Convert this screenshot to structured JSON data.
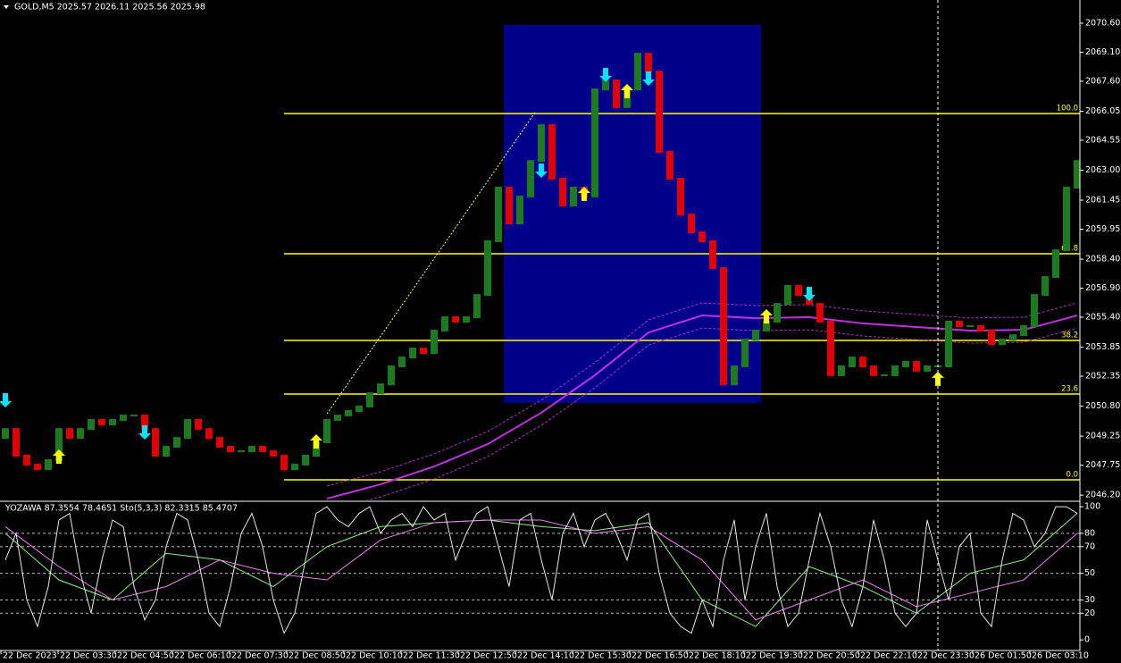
{
  "chart_data": {
    "type": "ohlc",
    "title": "GOLD,M5  2025.57 2026.11 2025.56 2025.98",
    "up_color": "#1e7a1e",
    "down_color": "#e00000",
    "ylim": [
      2045.93,
      2071.8
    ],
    "yticks": [
      {
        "value": 2070.6,
        "label": "2070.60"
      },
      {
        "value": 2069.1,
        "label": "2069.10"
      },
      {
        "value": 2067.6,
        "label": "2067.60"
      },
      {
        "value": 2066.05,
        "label": "2066.05"
      },
      {
        "value": 2064.55,
        "label": "2064.55"
      },
      {
        "value": 2063,
        "label": "2063.00"
      },
      {
        "value": 2061.45,
        "label": "2061.45"
      },
      {
        "value": 2059.95,
        "label": "2059.95"
      },
      {
        "value": 2058.4,
        "label": "2058.40"
      },
      {
        "value": 2056.9,
        "label": "2056.90"
      },
      {
        "value": 2055.4,
        "label": "2055.40"
      },
      {
        "value": 2053.85,
        "label": "2053.85"
      },
      {
        "value": 2052.35,
        "label": "2052.35"
      },
      {
        "value": 2050.8,
        "label": "2050.80"
      },
      {
        "value": 2049.25,
        "label": "2049.25"
      },
      {
        "value": 2047.75,
        "label": "2047.75"
      },
      {
        "value": 2046.2,
        "label": "2046.20"
      }
    ],
    "xlabels": [
      "22 Dec 2023",
      "22 Dec 03:30",
      "22 Dec 04:50",
      "22 Dec 06:10",
      "22 Dec 07:30",
      "22 Dec 08:50",
      "22 Dec 10:10",
      "22 Dec 11:30",
      "22 Dec 12:50",
      "22 Dec 14:10",
      "22 Dec 15:30",
      "22 Dec 16:50",
      "22 Dec 18:10",
      "22 Dec 19:30",
      "22 Dec 20:50",
      "22 Dec 22:10",
      "22 Dec 23:30",
      "26 Dec 01:50",
      "26 Dec 03:10"
    ],
    "open": [
      2049.16,
      2049.62,
      2048.24,
      2047.78,
      2047.54,
      2048.01,
      2049.62,
      2049.16,
      2049.62,
      2050.09,
      2049.85,
      2050.09,
      2050.32,
      2050.32,
      2049.62,
      2048.24,
      2048.7,
      2049.16,
      2050.09,
      2049.62,
      2049.16,
      2048.7,
      2048.47,
      2048.47,
      2048.7,
      2048.47,
      2048.24,
      2047.54,
      2047.78,
      2048.24,
      2048.93,
      2050.09,
      2050.32,
      2050.55,
      2050.78,
      2051.47,
      2051.93,
      2052.86,
      2053.32,
      2053.78,
      2053.55,
      2054.71,
      2055.4,
      2055.17,
      2055.4,
      2056.55,
      2059.33,
      2062.1,
      2060.25,
      2061.64,
      2063.48,
      2065.33,
      2062.56,
      2061.17,
      2062.1,
      2061.64,
      2067.18,
      2067.64,
      2066.26,
      2067.18,
      2069.03,
      2068.1,
      2063.95,
      2062.56,
      2060.71,
      2059.79,
      2059.33,
      2057.94,
      2051.93,
      2052.86,
      2054.24,
      2054.71,
      2055.17,
      2056.09,
      2057.02,
      2056.55,
      2056.09,
      2055.17,
      2052.4,
      2052.86,
      2053.32,
      2052.86,
      2052.4,
      2052.4,
      2052.86,
      2053.09,
      2052.63,
      2052.86,
      2052.86,
      2055.17,
      2054.94,
      2054.94,
      2054.71,
      2054.01,
      2054.24,
      2054.47,
      2054.94,
      2056.55,
      2057.48,
      2058.86,
      2062.1
    ],
    "close": [
      2049.62,
      2048.24,
      2047.78,
      2047.54,
      2048.01,
      2049.62,
      2049.16,
      2049.62,
      2050.09,
      2049.85,
      2050.09,
      2050.32,
      2050.32,
      2049.62,
      2048.24,
      2048.7,
      2049.16,
      2050.09,
      2049.62,
      2049.16,
      2048.7,
      2048.47,
      2048.47,
      2048.7,
      2048.47,
      2048.24,
      2047.54,
      2047.78,
      2048.24,
      2048.93,
      2050.09,
      2050.32,
      2050.55,
      2050.78,
      2051.47,
      2051.93,
      2052.86,
      2053.32,
      2053.78,
      2053.55,
      2054.71,
      2055.4,
      2055.17,
      2055.4,
      2056.55,
      2059.33,
      2062.1,
      2060.25,
      2061.64,
      2063.48,
      2065.33,
      2062.56,
      2061.17,
      2062.1,
      2061.64,
      2067.18,
      2067.64,
      2066.26,
      2067.18,
      2069.03,
      2068.1,
      2063.95,
      2062.56,
      2060.71,
      2059.79,
      2059.33,
      2057.94,
      2051.93,
      2052.86,
      2054.24,
      2054.71,
      2055.17,
      2056.09,
      2057.02,
      2056.55,
      2056.09,
      2055.17,
      2052.4,
      2052.86,
      2053.32,
      2052.86,
      2052.4,
      2052.4,
      2052.86,
      2053.09,
      2052.63,
      2052.86,
      2052.86,
      2055.17,
      2054.94,
      2054.94,
      2054.71,
      2054.01,
      2054.24,
      2054.47,
      2054.94,
      2056.55,
      2057.48,
      2058.86,
      2062.1,
      2063.48
    ],
    "overlays": [
      {
        "color": "#c030e0",
        "dashed": false,
        "x": [
          30,
          35,
          40,
          45,
          50,
          55,
          60,
          65,
          70,
          75,
          80,
          85,
          90,
          95,
          100
        ],
        "values": [
          2046.02,
          2046.76,
          2047.68,
          2048.84,
          2050.46,
          2052.4,
          2054.61,
          2055.49,
          2055.35,
          2055.4,
          2055.08,
          2054.89,
          2054.71,
          2054.75,
          2055.49
        ]
      },
      {
        "color": "#b030c8",
        "dashed": true,
        "x": [
          30,
          35,
          40,
          45,
          50,
          55,
          60,
          65,
          70,
          75,
          80,
          85,
          90,
          95,
          100
        ],
        "values": [
          2046.67,
          2047.41,
          2048.33,
          2049.49,
          2051.11,
          2053.05,
          2055.26,
          2056.14,
          2056.0,
          2056.05,
          2055.73,
          2055.54,
          2055.36,
          2055.4,
          2056.14
        ]
      },
      {
        "color": "#b030c8",
        "dashed": true,
        "x": [
          30,
          35,
          40,
          45,
          50,
          55,
          60,
          65,
          70,
          75,
          80,
          85,
          90,
          95,
          100
        ],
        "values": [
          2045.37,
          2046.11,
          2047.03,
          2048.19,
          2049.81,
          2051.75,
          2053.96,
          2054.84,
          2054.7,
          2054.75,
          2054.43,
          2054.24,
          2054.06,
          2054.1,
          2054.84
        ]
      }
    ],
    "buy_arrows": {
      "color": "#ffff00",
      "x": [
        5,
        29,
        54,
        58,
        71,
        87
      ],
      "values": [
        2048.15,
        2048.93,
        2061.73,
        2067.05,
        2055.4,
        2052.17
      ]
    },
    "sell_arrows": {
      "color": "#00e5ff",
      "x": [
        0,
        13,
        50,
        56,
        60,
        75
      ],
      "values": [
        2051.15,
        2049.49,
        2063.02,
        2067.97,
        2067.78,
        2056.65
      ]
    },
    "box": {
      "color": "#00008b",
      "x": [
        46.5,
        70.5
      ],
      "values": [
        2050.97,
        2070.51
      ]
    },
    "fib": {
      "color": "#ffff00",
      "start": 26,
      "levels": [
        {
          "value": 2065.93,
          "label": "100.0"
        },
        {
          "value": 2058.68,
          "label": "61.8"
        },
        {
          "value": 2054.2,
          "label": "38.2"
        },
        {
          "value": 2051.43,
          "label": "23.6"
        },
        {
          "value": 2046.99,
          "label": "0.0"
        }
      ]
    },
    "trend_line": {
      "x": [
        30,
        49.5
      ],
      "values": [
        2050.4,
        2066.05
      ]
    },
    "vline_x": 87,
    "oscillator": {
      "title": "YOZAWA 87.3554 78.4651  Sto(5,3,3) 82.3315 85.4707",
      "ylim": [
        -8,
        103.4
      ],
      "yticks": [
        100,
        80,
        70,
        50,
        30,
        20,
        0
      ],
      "levels": [
        80,
        70,
        50,
        30,
        20
      ],
      "fast": {
        "color": "#e8e8e8",
        "values": [
          60,
          80,
          30,
          10,
          40,
          90,
          95,
          50,
          20,
          60,
          90,
          85,
          40,
          15,
          30,
          70,
          95,
          90,
          60,
          20,
          10,
          40,
          80,
          95,
          70,
          30,
          5,
          20,
          60,
          95,
          100,
          90,
          85,
          95,
          100,
          80,
          90,
          95,
          85,
          100,
          90,
          95,
          60,
          80,
          95,
          100,
          70,
          40,
          90,
          95,
          60,
          30,
          80,
          95,
          70,
          90,
          95,
          80,
          60,
          90,
          95,
          50,
          20,
          10,
          5,
          30,
          10,
          60,
          90,
          30,
          70,
          95,
          40,
          10,
          20,
          60,
          95,
          70,
          30,
          10,
          40,
          90,
          60,
          20,
          10,
          20,
          90,
          60,
          30,
          70,
          80,
          20,
          10,
          60,
          95,
          90,
          70,
          80,
          100,
          100,
          95
        ]
      },
      "slow": [
        {
          "color": "#90ee90",
          "x": [
            0,
            5,
            10,
            15,
            20,
            25,
            30,
            35,
            40,
            45,
            50,
            55,
            60,
            65,
            70,
            75,
            80,
            85,
            90,
            95,
            100
          ],
          "values": [
            80,
            45,
            30,
            65,
            60,
            40,
            70,
            85,
            88,
            90,
            85,
            82,
            88,
            30,
            10,
            55,
            40,
            20,
            50,
            60,
            95
          ]
        },
        {
          "color": "#ee82ee",
          "x": [
            0,
            5,
            10,
            15,
            20,
            25,
            30,
            35,
            40,
            45,
            50,
            55,
            60,
            65,
            70,
            75,
            80,
            85,
            90,
            95,
            100
          ],
          "values": [
            85,
            55,
            30,
            40,
            60,
            50,
            45,
            75,
            88,
            90,
            90,
            80,
            85,
            60,
            15,
            30,
            45,
            25,
            35,
            45,
            80
          ]
        }
      ]
    }
  }
}
